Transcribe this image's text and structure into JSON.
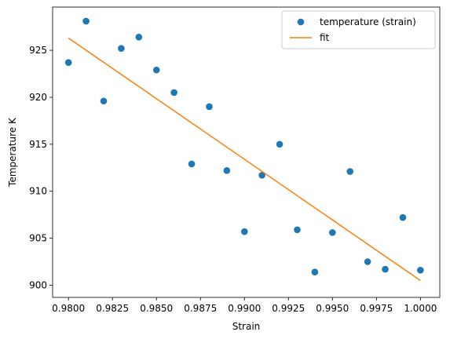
{
  "chart_data": {
    "type": "scatter",
    "xlabel": "Strain",
    "ylabel": "Temperature K",
    "xlim": [
      0.9791,
      1.0011
    ],
    "ylim": [
      898.7,
      929.6
    ],
    "xticks": [
      0.98,
      0.9825,
      0.985,
      0.9875,
      0.99,
      0.9925,
      0.995,
      0.9975,
      1.0
    ],
    "xtick_labels": [
      "0.9800",
      "0.9825",
      "0.9850",
      "0.9875",
      "0.9900",
      "0.9925",
      "0.9950",
      "0.9975",
      "1.0000"
    ],
    "yticks": [
      900,
      905,
      910,
      915,
      920,
      925
    ],
    "ytick_labels": [
      "900",
      "905",
      "910",
      "915",
      "920",
      "925"
    ],
    "grid": false,
    "legend_position": "upper-right",
    "series": [
      {
        "name": "temperature (strain)",
        "kind": "scatter",
        "color": "#1f77b4",
        "x": [
          0.98,
          0.981,
          0.982,
          0.983,
          0.984,
          0.985,
          0.986,
          0.987,
          0.988,
          0.989,
          0.99,
          0.991,
          0.992,
          0.993,
          0.994,
          0.995,
          0.996,
          0.997,
          0.998,
          0.999,
          1.0
        ],
        "y": [
          923.7,
          928.1,
          919.6,
          925.2,
          926.4,
          922.9,
          920.5,
          912.9,
          919.0,
          912.2,
          905.7,
          911.7,
          915.0,
          905.9,
          901.4,
          905.6,
          912.1,
          902.5,
          901.7,
          907.2,
          901.6
        ]
      },
      {
        "name": "fit",
        "kind": "line",
        "color": "#ff7f0e",
        "x": [
          0.98,
          1.0
        ],
        "y": [
          926.3,
          900.5
        ]
      }
    ]
  }
}
